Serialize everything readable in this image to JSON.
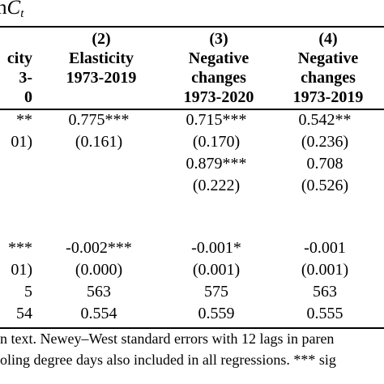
{
  "title": {
    "prefix": "n",
    "var": "C",
    "sub": "t"
  },
  "columns": [
    {
      "num": "",
      "lines": [
        "city",
        "3-",
        "0"
      ]
    },
    {
      "num": "(2)",
      "lines": [
        "Elasticity",
        "1973-2019"
      ]
    },
    {
      "num": "(3)",
      "lines": [
        "Negative",
        "changes",
        "1973-2020"
      ]
    },
    {
      "num": "(4)",
      "lines": [
        "Negative",
        "changes",
        "1973-2019"
      ]
    }
  ],
  "rows": [
    {
      "cut": "**",
      "c2": "0.775***",
      "c3": "0.715***",
      "c4": "0.542**"
    },
    {
      "cut": "01)",
      "c2": "(0.161)",
      "c3": "(0.170)",
      "c4": "(0.236)"
    },
    {
      "cut": "",
      "c2": "",
      "c3": "0.879***",
      "c4": "0.708"
    },
    {
      "cut": "",
      "c2": "",
      "c3": "(0.222)",
      "c4": "(0.526)"
    },
    {
      "cut": "***",
      "c2": "-0.002***",
      "c3": "-0.001*",
      "c4": "-0.001"
    },
    {
      "cut": "01)",
      "c2": "(0.000)",
      "c3": "(0.001)",
      "c4": "(0.001)"
    },
    {
      "cut": "5",
      "c2": "563",
      "c3": "575",
      "c4": "563"
    },
    {
      "cut": "54",
      "c2": "0.554",
      "c3": "0.559",
      "c4": "0.555"
    }
  ],
  "notes": [
    "n text. Newey–West standard errors with 12 lags in paren",
    "oling degree days also included in all regressions. *** sig"
  ]
}
